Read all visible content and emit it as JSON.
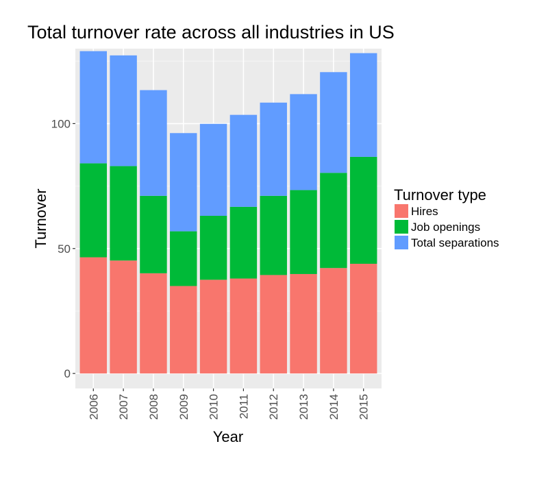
{
  "chart_data": {
    "type": "bar",
    "stacked": true,
    "title": "Total turnover rate across all industries in US",
    "xlabel": "Year",
    "ylabel": "Turnover",
    "ylim": [
      -6,
      130
    ],
    "yticks": [
      0,
      50,
      100
    ],
    "categories": [
      "2006",
      "2007",
      "2008",
      "2009",
      "2010",
      "2011",
      "2012",
      "2013",
      "2014",
      "2015"
    ],
    "series": [
      {
        "name": "Hires",
        "color": "#F8766D",
        "values": [
          46.5,
          45.2,
          40.1,
          35.0,
          37.5,
          38.0,
          39.4,
          39.8,
          42.2,
          43.9
        ]
      },
      {
        "name": "Job openings",
        "color": "#00BA38",
        "values": [
          37.6,
          37.8,
          31.0,
          21.9,
          25.6,
          28.7,
          31.7,
          33.6,
          38.1,
          42.8
        ]
      },
      {
        "name": "Total separations",
        "color": "#619CFF",
        "values": [
          44.9,
          44.3,
          42.3,
          39.3,
          36.8,
          36.8,
          37.3,
          38.4,
          40.3,
          41.5
        ]
      }
    ],
    "grid": true,
    "legend": {
      "title": "Turnover type",
      "position": "right"
    }
  }
}
